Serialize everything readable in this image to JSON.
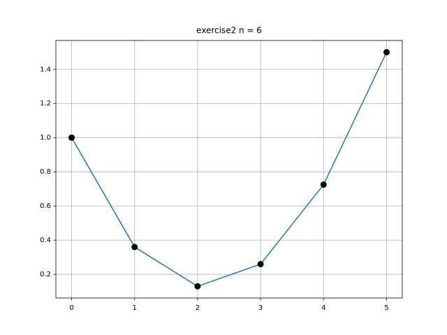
{
  "chart_data": {
    "type": "line",
    "title": "exercise2 n = 6",
    "x": [
      0,
      1,
      2,
      3,
      4,
      5
    ],
    "series": [
      {
        "color": "#1f77b4",
        "marker_color": "#000000",
        "values": [
          1.0,
          0.36,
          0.13,
          0.26,
          0.725,
          1.5
        ]
      }
    ],
    "xlim": [
      -0.25,
      5.25
    ],
    "xticks": [
      0,
      1,
      2,
      3,
      4,
      5
    ],
    "ylim": [
      0.0615,
      1.5685
    ],
    "yticks": [
      {
        "value": 0.2,
        "label": "0.2"
      },
      {
        "value": 0.4,
        "label": "0.4"
      },
      {
        "value": 0.6,
        "label": "0.6"
      },
      {
        "value": 0.8,
        "label": "0.8"
      },
      {
        "value": 1.0,
        "label": "1.0"
      },
      {
        "value": 1.2,
        "label": "1.2"
      },
      {
        "value": 1.4,
        "label": "1.4"
      }
    ],
    "grid": true
  }
}
